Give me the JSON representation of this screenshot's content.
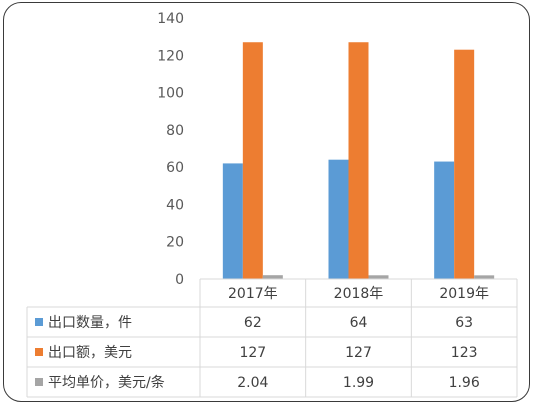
{
  "chart_data": {
    "type": "bar",
    "categories": [
      "2017年",
      "2018年",
      "2019年"
    ],
    "series": [
      {
        "name": "出口数量，件",
        "values": [
          62,
          64,
          63
        ],
        "color": "#5b9bd5",
        "labels": [
          "62",
          "64",
          "63"
        ]
      },
      {
        "name": "出口额，美元",
        "values": [
          127,
          127,
          123
        ],
        "color": "#ed7d31",
        "labels": [
          "127",
          "127",
          "123"
        ]
      },
      {
        "name": "平均单价，美元/条",
        "values": [
          2.04,
          1.99,
          1.96
        ],
        "color": "#a5a5a5",
        "labels": [
          "2.04",
          "1.99",
          "1.96"
        ]
      }
    ],
    "yticks": [
      "0",
      "20",
      "40",
      "60",
      "80",
      "100",
      "120",
      "140"
    ],
    "ylim": [
      0,
      140
    ],
    "legend": "data-table"
  }
}
